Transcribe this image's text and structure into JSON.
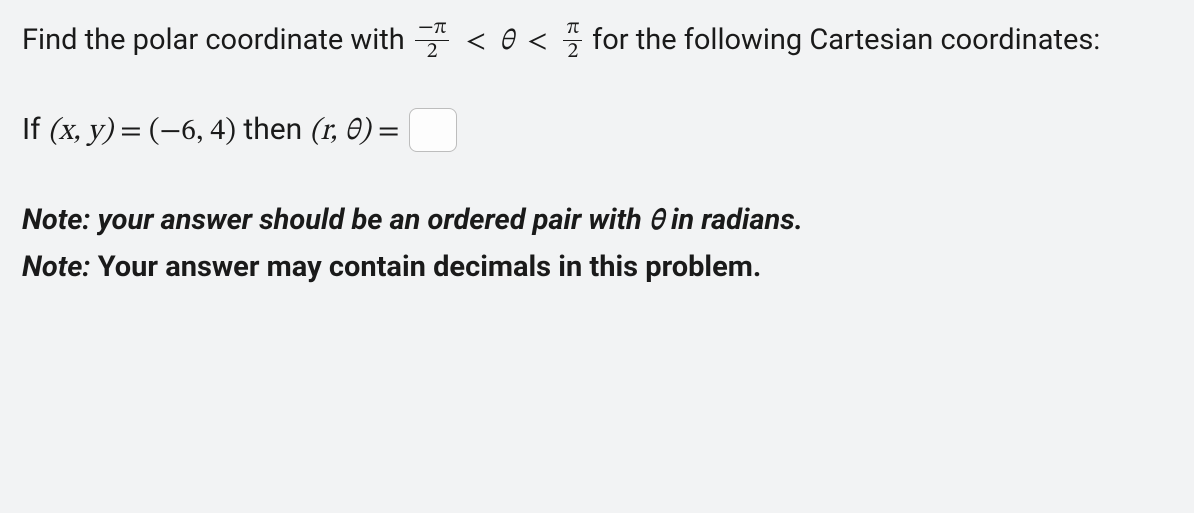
{
  "intro": {
    "part1": "Find the polar coordinate with ",
    "frac1_num": "−π",
    "frac1_den": "2",
    "lt1": "<",
    "theta": "θ",
    "lt2": "<",
    "frac2_num": "π",
    "frac2_den": "2",
    "part2": " for the following Cartesian coordinates:"
  },
  "prompt": {
    "if_text": "If ",
    "xy": "(x, y)",
    "eq1": " = ",
    "coord": "(−6, 4)",
    "then_text": " then ",
    "rtheta": "(r, θ)",
    "eq2": " ="
  },
  "note1": {
    "lead": "Note: your answer should be an ordered pair with ",
    "theta": "θ",
    "tail": " in radians."
  },
  "note2": {
    "lead": "Note:",
    "rest": " Your answer may contain decimals in this problem."
  }
}
